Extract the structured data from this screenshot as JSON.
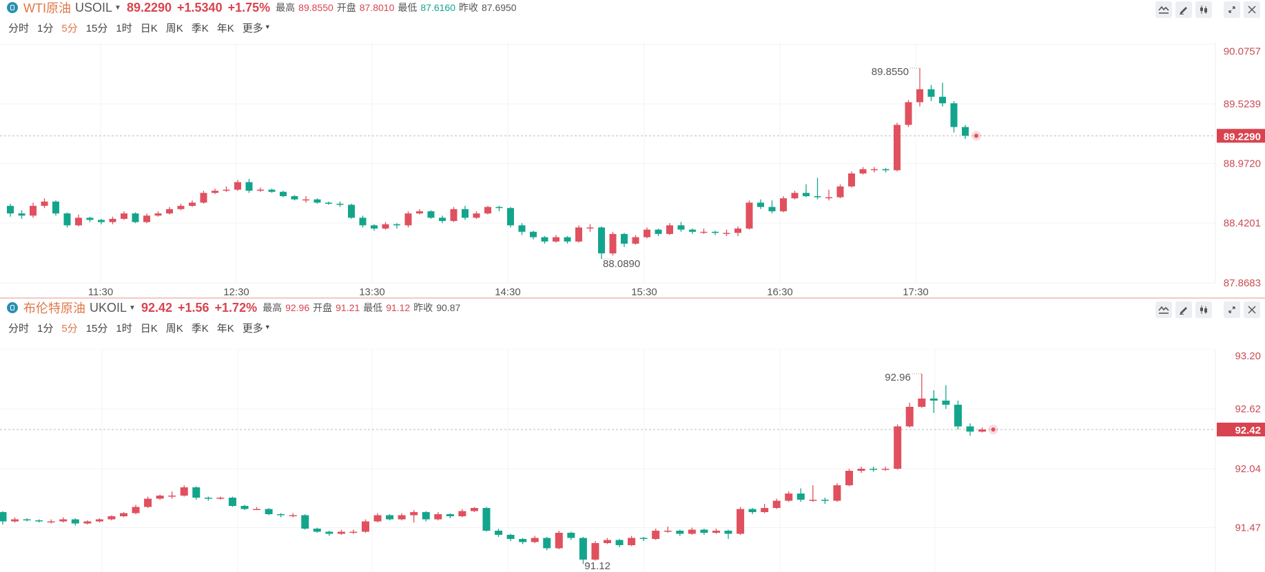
{
  "colors": {
    "up": "#e0505e",
    "down": "#13a58c",
    "accent": "#e07646"
  },
  "tabs": [
    "分时",
    "1分",
    "5分",
    "15分",
    "1时",
    "日K",
    "周K",
    "季K",
    "年K",
    "更多"
  ],
  "active_tab": "5分",
  "toolbar_icons": [
    "indicator-icon",
    "draw-icon",
    "candle-style-icon",
    "expand-icon",
    "close-icon"
  ],
  "panels": [
    {
      "name": "WTI原油",
      "symbol": "USOIL",
      "price": "89.2290",
      "change": "+1.5340",
      "change_pct": "+1.75%",
      "stats": [
        {
          "label": "最高",
          "value": "89.8550",
          "tone": "up"
        },
        {
          "label": "开盘",
          "value": "87.8010",
          "tone": "up"
        },
        {
          "label": "最低",
          "value": "87.6160",
          "tone": "down"
        },
        {
          "label": "昨收",
          "value": "87.6950",
          "tone": "neutral"
        }
      ]
    },
    {
      "name": "布伦特原油",
      "symbol": "UKOIL",
      "price": "92.42",
      "change": "+1.56",
      "change_pct": "+1.72%",
      "stats": [
        {
          "label": "最高",
          "value": "92.96",
          "tone": "up"
        },
        {
          "label": "开盘",
          "value": "91.21",
          "tone": "up"
        },
        {
          "label": "最低",
          "value": "91.12",
          "tone": "up"
        },
        {
          "label": "昨收",
          "value": "90.87",
          "tone": "neutral"
        }
      ]
    }
  ],
  "chart_data": [
    {
      "type": "candlestick",
      "interval": "5分",
      "y_ticks": [
        "90.0757",
        "89.5239",
        "88.9720",
        "88.4201",
        "87.8683"
      ],
      "last_price": "89.2290",
      "x_ticks": [
        "11:30",
        "12:30",
        "13:30",
        "14:30",
        "15:30",
        "16:30",
        "17:30"
      ],
      "annotations": [
        {
          "text": "89.8550",
          "kind": "high",
          "index": 80
        },
        {
          "text": "88.0890",
          "kind": "low",
          "index": 52
        }
      ],
      "ohlc": [
        [
          88.58,
          88.6,
          88.48,
          88.51
        ],
        [
          88.51,
          88.54,
          88.46,
          88.49
        ],
        [
          88.49,
          88.61,
          88.47,
          88.58
        ],
        [
          88.58,
          88.65,
          88.56,
          88.62
        ],
        [
          88.62,
          88.63,
          88.49,
          88.51
        ],
        [
          88.51,
          88.52,
          88.38,
          88.4
        ],
        [
          88.4,
          88.5,
          88.39,
          88.47
        ],
        [
          88.47,
          88.48,
          88.43,
          88.45
        ],
        [
          88.45,
          88.46,
          88.41,
          88.43
        ],
        [
          88.43,
          88.48,
          88.41,
          88.46
        ],
        [
          88.46,
          88.53,
          88.45,
          88.51
        ],
        [
          88.51,
          88.52,
          88.42,
          88.43
        ],
        [
          88.43,
          88.51,
          88.42,
          88.49
        ],
        [
          88.49,
          88.53,
          88.48,
          88.51
        ],
        [
          88.51,
          88.57,
          88.5,
          88.55
        ],
        [
          88.55,
          88.6,
          88.54,
          88.58
        ],
        [
          88.58,
          88.63,
          88.57,
          88.61
        ],
        [
          88.61,
          88.72,
          88.6,
          88.7
        ],
        [
          88.7,
          88.74,
          88.69,
          88.72
        ],
        [
          88.72,
          88.76,
          88.71,
          88.73
        ],
        [
          88.73,
          88.82,
          88.72,
          88.8
        ],
        [
          88.8,
          88.83,
          88.7,
          88.72
        ],
        [
          88.72,
          88.75,
          88.71,
          88.73
        ],
        [
          88.73,
          88.74,
          88.7,
          88.71
        ],
        [
          88.71,
          88.72,
          88.66,
          88.67
        ],
        [
          88.67,
          88.68,
          88.63,
          88.64
        ],
        [
          88.64,
          88.67,
          88.61,
          88.64
        ],
        [
          88.64,
          88.65,
          88.6,
          88.61
        ],
        [
          88.61,
          88.62,
          88.59,
          88.6
        ],
        [
          88.6,
          88.62,
          88.57,
          88.59
        ],
        [
          88.59,
          88.6,
          88.46,
          88.47
        ],
        [
          88.47,
          88.49,
          88.38,
          88.4
        ],
        [
          88.4,
          88.41,
          88.35,
          88.37
        ],
        [
          88.37,
          88.43,
          88.36,
          88.41
        ],
        [
          88.41,
          88.42,
          88.37,
          88.4
        ],
        [
          88.4,
          88.53,
          88.38,
          88.51
        ],
        [
          88.51,
          88.55,
          88.5,
          88.53
        ],
        [
          88.53,
          88.54,
          88.46,
          88.47
        ],
        [
          88.47,
          88.49,
          88.42,
          88.44
        ],
        [
          88.44,
          88.57,
          88.43,
          88.55
        ],
        [
          88.55,
          88.58,
          88.45,
          88.47
        ],
        [
          88.47,
          88.53,
          88.46,
          88.51
        ],
        [
          88.51,
          88.58,
          88.5,
          88.57
        ],
        [
          88.57,
          88.58,
          88.53,
          88.56
        ],
        [
          88.56,
          88.57,
          88.38,
          88.4
        ],
        [
          88.4,
          88.42,
          88.31,
          88.34
        ],
        [
          88.34,
          88.35,
          88.27,
          88.29
        ],
        [
          88.29,
          88.3,
          88.23,
          88.25
        ],
        [
          88.25,
          88.31,
          88.24,
          88.29
        ],
        [
          88.29,
          88.3,
          88.23,
          88.25
        ],
        [
          88.25,
          88.4,
          88.24,
          88.38
        ],
        [
          88.38,
          88.41,
          88.34,
          88.38
        ],
        [
          88.38,
          88.39,
          88.089,
          88.14
        ],
        [
          88.14,
          88.34,
          88.12,
          88.32
        ],
        [
          88.32,
          88.33,
          88.2,
          88.23
        ],
        [
          88.23,
          88.31,
          88.22,
          88.29
        ],
        [
          88.29,
          88.38,
          88.28,
          88.36
        ],
        [
          88.36,
          88.37,
          88.3,
          88.32
        ],
        [
          88.32,
          88.42,
          88.31,
          88.4
        ],
        [
          88.4,
          88.43,
          88.34,
          88.36
        ],
        [
          88.36,
          88.37,
          88.32,
          88.34
        ],
        [
          88.34,
          88.37,
          88.32,
          88.34
        ],
        [
          88.34,
          88.35,
          88.31,
          88.33
        ],
        [
          88.33,
          88.36,
          88.3,
          88.33
        ],
        [
          88.33,
          88.39,
          88.3,
          88.37
        ],
        [
          88.37,
          88.63,
          88.36,
          88.61
        ],
        [
          88.61,
          88.64,
          88.55,
          88.57
        ],
        [
          88.57,
          88.63,
          88.51,
          88.53
        ],
        [
          88.53,
          88.67,
          88.52,
          88.65
        ],
        [
          88.65,
          88.72,
          88.64,
          88.7
        ],
        [
          88.7,
          88.78,
          88.66,
          88.67
        ],
        [
          88.67,
          88.84,
          88.64,
          88.66
        ],
        [
          88.66,
          88.73,
          88.63,
          88.66
        ],
        [
          88.66,
          88.78,
          88.65,
          88.76
        ],
        [
          88.76,
          88.9,
          88.75,
          88.88
        ],
        [
          88.88,
          88.94,
          88.87,
          88.92
        ],
        [
          88.92,
          88.94,
          88.89,
          88.92
        ],
        [
          88.92,
          88.93,
          88.89,
          88.91
        ],
        [
          88.91,
          89.35,
          88.9,
          89.33
        ],
        [
          89.33,
          89.56,
          89.31,
          89.54
        ],
        [
          89.54,
          89.855,
          89.5,
          89.66
        ],
        [
          89.66,
          89.7,
          89.55,
          89.59
        ],
        [
          89.59,
          89.72,
          89.5,
          89.53
        ],
        [
          89.53,
          89.55,
          89.26,
          89.31
        ],
        [
          89.31,
          89.33,
          89.2,
          89.229
        ]
      ]
    },
    {
      "type": "candlestick",
      "interval": "5分",
      "y_ticks": [
        "93.20",
        "92.62",
        "92.04",
        "91.47"
      ],
      "last_price": "92.42",
      "x_ticks": [],
      "annotations": [
        {
          "text": "92.96",
          "kind": "high",
          "index": 76
        },
        {
          "text": "91.12",
          "kind": "low",
          "index": 48
        }
      ],
      "ohlc": [
        [
          91.62,
          91.63,
          91.5,
          91.53
        ],
        [
          91.53,
          91.57,
          91.52,
          91.55
        ],
        [
          91.55,
          91.56,
          91.53,
          91.54
        ],
        [
          91.54,
          91.55,
          91.52,
          91.53
        ],
        [
          91.53,
          91.55,
          91.51,
          91.53
        ],
        [
          91.53,
          91.57,
          91.52,
          91.55
        ],
        [
          91.55,
          91.56,
          91.49,
          91.51
        ],
        [
          91.51,
          91.54,
          91.5,
          91.53
        ],
        [
          91.53,
          91.56,
          91.52,
          91.55
        ],
        [
          91.55,
          91.59,
          91.54,
          91.58
        ],
        [
          91.58,
          91.62,
          91.57,
          91.61
        ],
        [
          91.61,
          91.69,
          91.6,
          91.67
        ],
        [
          91.67,
          91.77,
          91.66,
          91.75
        ],
        [
          91.75,
          91.79,
          91.74,
          91.78
        ],
        [
          91.78,
          91.82,
          91.75,
          91.78
        ],
        [
          91.78,
          91.88,
          91.77,
          91.86
        ],
        [
          91.86,
          91.87,
          91.74,
          91.76
        ],
        [
          91.76,
          91.77,
          91.73,
          91.75
        ],
        [
          91.75,
          91.77,
          91.74,
          91.76
        ],
        [
          91.76,
          91.77,
          91.67,
          91.68
        ],
        [
          91.68,
          91.69,
          91.64,
          91.65
        ],
        [
          91.65,
          91.67,
          91.64,
          91.65
        ],
        [
          91.65,
          91.66,
          91.59,
          91.6
        ],
        [
          91.6,
          91.61,
          91.57,
          91.59
        ],
        [
          91.59,
          91.61,
          91.57,
          91.59
        ],
        [
          91.59,
          91.6,
          91.45,
          91.46
        ],
        [
          91.46,
          91.47,
          91.42,
          91.43
        ],
        [
          91.43,
          91.44,
          91.39,
          91.41
        ],
        [
          91.41,
          91.45,
          91.4,
          91.43
        ],
        [
          91.43,
          91.45,
          91.41,
          91.43
        ],
        [
          91.43,
          91.55,
          91.42,
          91.53
        ],
        [
          91.53,
          91.61,
          91.52,
          91.59
        ],
        [
          91.59,
          91.6,
          91.54,
          91.55
        ],
        [
          91.55,
          91.61,
          91.54,
          91.59
        ],
        [
          91.59,
          91.64,
          91.52,
          91.62
        ],
        [
          91.62,
          91.63,
          91.53,
          91.55
        ],
        [
          91.55,
          91.62,
          91.54,
          91.6
        ],
        [
          91.6,
          91.61,
          91.56,
          91.58
        ],
        [
          91.58,
          91.65,
          91.57,
          91.63
        ],
        [
          91.63,
          91.67,
          91.62,
          91.66
        ],
        [
          91.66,
          91.67,
          91.43,
          91.44
        ],
        [
          91.44,
          91.46,
          91.38,
          91.4
        ],
        [
          91.4,
          91.41,
          91.34,
          91.36
        ],
        [
          91.36,
          91.37,
          91.31,
          91.33
        ],
        [
          91.33,
          91.39,
          91.32,
          91.37
        ],
        [
          91.37,
          91.38,
          91.25,
          91.27
        ],
        [
          91.27,
          91.44,
          91.26,
          91.42
        ],
        [
          91.42,
          91.43,
          91.35,
          91.37
        ],
        [
          91.37,
          91.38,
          91.12,
          91.16
        ],
        [
          91.16,
          91.34,
          91.15,
          91.32
        ],
        [
          91.32,
          91.37,
          91.31,
          91.35
        ],
        [
          91.35,
          91.36,
          91.28,
          91.3
        ],
        [
          91.3,
          91.39,
          91.29,
          91.37
        ],
        [
          91.37,
          91.38,
          91.34,
          91.36
        ],
        [
          91.36,
          91.46,
          91.35,
          91.44
        ],
        [
          91.44,
          91.48,
          91.42,
          91.44
        ],
        [
          91.44,
          91.45,
          91.39,
          91.41
        ],
        [
          91.41,
          91.47,
          91.4,
          91.45
        ],
        [
          91.45,
          91.46,
          91.4,
          91.42
        ],
        [
          91.42,
          91.46,
          91.41,
          91.44
        ],
        [
          91.44,
          91.45,
          91.36,
          91.41
        ],
        [
          91.41,
          91.67,
          91.4,
          91.65
        ],
        [
          91.65,
          91.66,
          91.6,
          91.62
        ],
        [
          91.62,
          91.7,
          91.61,
          91.66
        ],
        [
          91.66,
          91.75,
          91.65,
          91.73
        ],
        [
          91.73,
          91.82,
          91.72,
          91.8
        ],
        [
          91.8,
          91.85,
          91.72,
          91.74
        ],
        [
          91.74,
          91.88,
          91.72,
          91.74
        ],
        [
          91.74,
          91.76,
          91.7,
          91.73
        ],
        [
          91.73,
          91.9,
          91.72,
          91.88
        ],
        [
          91.88,
          92.04,
          91.87,
          92.02
        ],
        [
          92.02,
          92.06,
          92.0,
          92.04
        ],
        [
          92.04,
          92.06,
          92.01,
          92.03
        ],
        [
          92.03,
          92.06,
          92.02,
          92.04
        ],
        [
          92.04,
          92.47,
          92.03,
          92.45
        ],
        [
          92.45,
          92.68,
          92.44,
          92.64
        ],
        [
          92.64,
          92.96,
          92.63,
          92.72
        ],
        [
          92.72,
          92.8,
          92.58,
          92.7
        ],
        [
          92.7,
          92.85,
          92.62,
          92.66
        ],
        [
          92.66,
          92.7,
          92.42,
          92.45
        ],
        [
          92.45,
          92.48,
          92.36,
          92.4
        ],
        [
          92.4,
          92.44,
          92.39,
          92.42
        ]
      ]
    }
  ]
}
